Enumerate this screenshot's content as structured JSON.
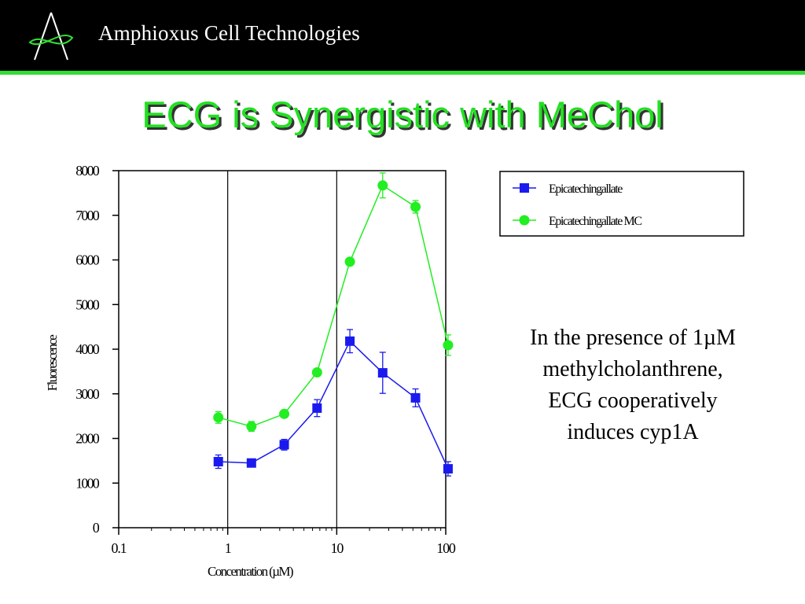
{
  "header": {
    "company_name": "Amphioxus Cell Technologies",
    "logo_icon": "amphioxus-logo-icon",
    "background_color": "#000000",
    "stripe_color": "#33dd33"
  },
  "slide": {
    "title": "ECG is Synergistic with MeChol",
    "title_color": "#22e022"
  },
  "annotation": {
    "lines": [
      "In the presence of 1µM",
      "methylcholanthrene,",
      "ECG cooperatively",
      "induces cyp1A"
    ]
  },
  "chart_data": {
    "type": "line",
    "xscale": "log",
    "xlim": [
      0.1,
      100
    ],
    "ylim": [
      0,
      8000
    ],
    "xlabel": "Concentration (µM)",
    "ylabel": "Fluorescence",
    "x_tick_labels": [
      "0.1",
      "1",
      "10",
      "100"
    ],
    "y_tick_labels": [
      "0",
      "1000",
      "2000",
      "3000",
      "4000",
      "5000",
      "6000",
      "7000",
      "8000"
    ],
    "grid": "vertical",
    "legend_position": "top-right",
    "series": [
      {
        "name": "Epicatechingallate",
        "color": "#1a1aee",
        "marker": "square",
        "x": [
          0.82,
          1.65,
          3.3,
          6.6,
          13.2,
          26.4,
          52.8,
          105
        ],
        "y": [
          1480,
          1450,
          1860,
          2680,
          4180,
          3470,
          2910,
          1320
        ],
        "error": [
          150,
          70,
          120,
          190,
          260,
          460,
          200,
          160
        ]
      },
      {
        "name": "Epicatechingallate MC",
        "color": "#22ee22",
        "marker": "circle",
        "x": [
          0.82,
          1.65,
          3.3,
          6.6,
          13.2,
          26.4,
          52.8,
          105
        ],
        "y": [
          2470,
          2270,
          2550,
          3480,
          5960,
          7670,
          7190,
          4090
        ],
        "error": [
          130,
          110,
          60,
          70,
          70,
          280,
          140,
          230
        ]
      }
    ]
  }
}
